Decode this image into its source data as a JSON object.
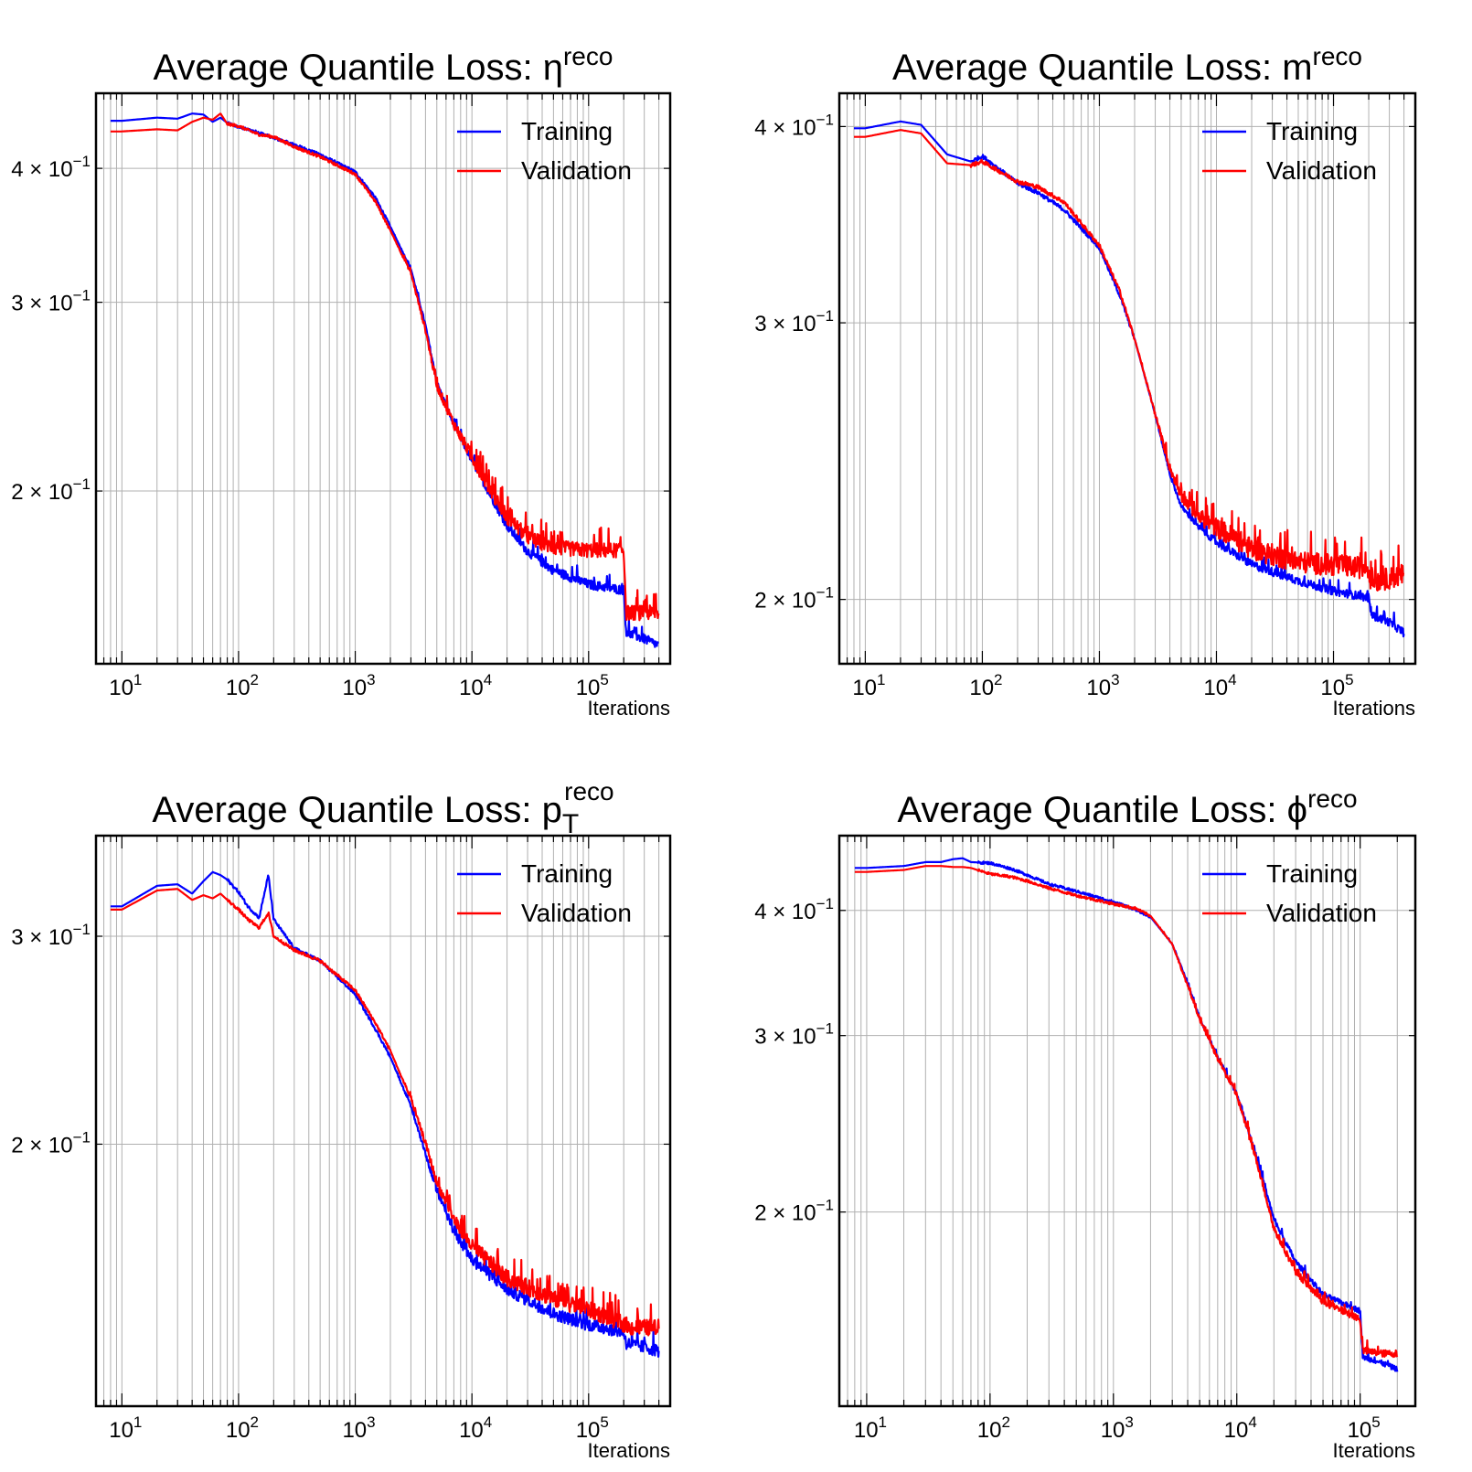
{
  "figure": {
    "background": "#ffffff"
  },
  "chart_data": [
    {
      "type": "line",
      "title": {
        "main": "Average Quantile Loss: ",
        "symbol": "η",
        "sup": "reco",
        "sub": ""
      },
      "xlabel": "Iterations",
      "ylabel": "",
      "xscale": "log",
      "yscale": "log",
      "xlim": [
        6,
        500000
      ],
      "ylim": [
        0.138,
        0.47
      ],
      "xticks": [
        {
          "base": "10",
          "exp": "1",
          "value": 10
        },
        {
          "base": "10",
          "exp": "2",
          "value": 100
        },
        {
          "base": "10",
          "exp": "3",
          "value": 1000
        },
        {
          "base": "10",
          "exp": "4",
          "value": 10000
        },
        {
          "base": "10",
          "exp": "5",
          "value": 100000
        }
      ],
      "yticks": [
        {
          "coef": "4 × ",
          "base": "10",
          "exp": "−1",
          "value": 0.4
        },
        {
          "coef": "3 × ",
          "base": "10",
          "exp": "−1",
          "value": 0.3
        },
        {
          "coef": "2 × ",
          "base": "10",
          "exp": "−1",
          "value": 0.2
        }
      ],
      "grid": true,
      "legend_position": "top-right",
      "series": [
        {
          "name": "Training",
          "color": "#0000ff",
          "x": [
            8,
            10,
            20,
            30,
            40,
            50,
            60,
            70,
            80,
            100,
            150,
            200,
            300,
            500,
            1000,
            1500,
            2000,
            3000,
            4000,
            5000,
            7000,
            10000,
            15000,
            20000,
            30000,
            50000,
            100000,
            200000,
            210000,
            300000,
            400000
          ],
          "y": [
            0.443,
            0.443,
            0.446,
            0.445,
            0.45,
            0.449,
            0.442,
            0.446,
            0.441,
            0.437,
            0.432,
            0.427,
            0.421,
            0.412,
            0.397,
            0.375,
            0.353,
            0.322,
            0.285,
            0.252,
            0.23,
            0.213,
            0.196,
            0.185,
            0.175,
            0.168,
            0.163,
            0.161,
            0.147,
            0.145,
            0.143
          ],
          "noise": 0.01
        },
        {
          "name": "Validation",
          "color": "#ff0000",
          "x": [
            8,
            10,
            20,
            30,
            40,
            50,
            60,
            70,
            80,
            100,
            150,
            200,
            300,
            500,
            1000,
            1500,
            2000,
            3000,
            4000,
            5000,
            7000,
            10000,
            15000,
            20000,
            30000,
            50000,
            100000,
            200000,
            210000,
            300000,
            400000
          ],
          "y": [
            0.433,
            0.433,
            0.435,
            0.434,
            0.442,
            0.446,
            0.444,
            0.45,
            0.44,
            0.438,
            0.43,
            0.428,
            0.419,
            0.41,
            0.395,
            0.372,
            0.35,
            0.319,
            0.282,
            0.25,
            0.23,
            0.214,
            0.198,
            0.188,
            0.18,
            0.176,
            0.175,
            0.175,
            0.153,
            0.153,
            0.153
          ],
          "noise": 0.016
        }
      ]
    },
    {
      "type": "line",
      "title": {
        "main": "Average Quantile Loss: ",
        "symbol": "m",
        "sup": "reco",
        "sub": ""
      },
      "xlabel": "Iterations",
      "ylabel": "",
      "xscale": "log",
      "yscale": "log",
      "xlim": [
        6,
        500000
      ],
      "ylim": [
        0.182,
        0.42
      ],
      "xticks": [
        {
          "base": "10",
          "exp": "1",
          "value": 10
        },
        {
          "base": "10",
          "exp": "2",
          "value": 100
        },
        {
          "base": "10",
          "exp": "3",
          "value": 1000
        },
        {
          "base": "10",
          "exp": "4",
          "value": 10000
        },
        {
          "base": "10",
          "exp": "5",
          "value": 100000
        }
      ],
      "yticks": [
        {
          "coef": "4 × ",
          "base": "10",
          "exp": "−1",
          "value": 0.4
        },
        {
          "coef": "3 × ",
          "base": "10",
          "exp": "−1",
          "value": 0.3
        },
        {
          "coef": "2 × ",
          "base": "10",
          "exp": "−1",
          "value": 0.2
        }
      ],
      "grid": true,
      "legend_position": "top-right",
      "series": [
        {
          "name": "Training",
          "color": "#0000ff",
          "x": [
            8,
            10,
            20,
            30,
            50,
            80,
            100,
            200,
            300,
            500,
            1000,
            1500,
            2000,
            3000,
            4000,
            5000,
            7000,
            10000,
            20000,
            50000,
            100000,
            200000,
            210000,
            300000,
            400000
          ],
          "y": [
            0.399,
            0.399,
            0.403,
            0.401,
            0.384,
            0.38,
            0.383,
            0.368,
            0.363,
            0.354,
            0.335,
            0.312,
            0.293,
            0.262,
            0.24,
            0.229,
            0.222,
            0.217,
            0.21,
            0.205,
            0.202,
            0.2,
            0.195,
            0.193,
            0.19
          ],
          "noise": 0.006
        },
        {
          "name": "Validation",
          "color": "#ff0000",
          "x": [
            8,
            10,
            20,
            30,
            50,
            80,
            100,
            200,
            300,
            500,
            1000,
            1500,
            2000,
            3000,
            4000,
            5000,
            7000,
            10000,
            20000,
            50000,
            100000,
            200000,
            210000,
            300000,
            400000
          ],
          "y": [
            0.394,
            0.394,
            0.398,
            0.396,
            0.379,
            0.378,
            0.38,
            0.369,
            0.366,
            0.358,
            0.336,
            0.314,
            0.293,
            0.262,
            0.242,
            0.232,
            0.225,
            0.221,
            0.214,
            0.21,
            0.209,
            0.208,
            0.204,
            0.205,
            0.206
          ],
          "noise": 0.016
        }
      ]
    },
    {
      "type": "line",
      "title": {
        "main": "Average Quantile Loss: ",
        "symbol": "p",
        "sup": "reco",
        "sub": "T"
      },
      "xlabel": "Iterations",
      "ylabel": "",
      "xscale": "log",
      "yscale": "log",
      "xlim": [
        6,
        500000
      ],
      "ylim": [
        0.12,
        0.365
      ],
      "xticks": [
        {
          "base": "10",
          "exp": "1",
          "value": 10
        },
        {
          "base": "10",
          "exp": "2",
          "value": 100
        },
        {
          "base": "10",
          "exp": "3",
          "value": 1000
        },
        {
          "base": "10",
          "exp": "4",
          "value": 10000
        },
        {
          "base": "10",
          "exp": "5",
          "value": 100000
        }
      ],
      "yticks": [
        {
          "coef": "3 × ",
          "base": "10",
          "exp": "−1",
          "value": 0.3
        },
        {
          "coef": "2 × ",
          "base": "10",
          "exp": "−1",
          "value": 0.2
        }
      ],
      "grid": true,
      "legend_position": "top-right",
      "series": [
        {
          "name": "Training",
          "color": "#0000ff",
          "x": [
            8,
            10,
            20,
            30,
            40,
            50,
            60,
            70,
            80,
            100,
            120,
            150,
            180,
            200,
            300,
            500,
            1000,
            1500,
            2000,
            3000,
            4000,
            5000,
            7000,
            10000,
            20000,
            50000,
            100000,
            200000,
            210000,
            300000,
            400000
          ],
          "y": [
            0.318,
            0.318,
            0.331,
            0.332,
            0.326,
            0.334,
            0.34,
            0.338,
            0.335,
            0.327,
            0.318,
            0.311,
            0.338,
            0.31,
            0.293,
            0.286,
            0.268,
            0.25,
            0.237,
            0.215,
            0.196,
            0.182,
            0.168,
            0.159,
            0.15,
            0.143,
            0.14,
            0.138,
            0.135,
            0.134,
            0.133
          ],
          "noise": 0.012
        },
        {
          "name": "Validation",
          "color": "#ff0000",
          "x": [
            8,
            10,
            20,
            30,
            40,
            50,
            60,
            70,
            80,
            100,
            120,
            150,
            180,
            200,
            300,
            500,
            1000,
            1500,
            2000,
            3000,
            4000,
            5000,
            7000,
            10000,
            20000,
            50000,
            100000,
            200000,
            210000,
            300000,
            400000
          ],
          "y": [
            0.316,
            0.316,
            0.328,
            0.329,
            0.322,
            0.325,
            0.323,
            0.326,
            0.322,
            0.316,
            0.31,
            0.305,
            0.314,
            0.3,
            0.292,
            0.286,
            0.27,
            0.253,
            0.24,
            0.218,
            0.2,
            0.185,
            0.172,
            0.163,
            0.153,
            0.147,
            0.144,
            0.14,
            0.139,
            0.139,
            0.139
          ],
          "noise": 0.016
        }
      ]
    },
    {
      "type": "line",
      "title": {
        "main": "Average Quantile Loss: ",
        "symbol": "ϕ",
        "sup": "reco",
        "sub": ""
      },
      "xlabel": "Iterations",
      "ylabel": "",
      "xscale": "log",
      "yscale": "log",
      "xlim": [
        6,
        280000
      ],
      "ylim": [
        0.128,
        0.475
      ],
      "xticks": [
        {
          "base": "10",
          "exp": "1",
          "value": 10
        },
        {
          "base": "10",
          "exp": "2",
          "value": 100
        },
        {
          "base": "10",
          "exp": "3",
          "value": 1000
        },
        {
          "base": "10",
          "exp": "4",
          "value": 10000
        },
        {
          "base": "10",
          "exp": "5",
          "value": 100000
        }
      ],
      "yticks": [
        {
          "coef": "4 × ",
          "base": "10",
          "exp": "−1",
          "value": 0.4
        },
        {
          "coef": "3 × ",
          "base": "10",
          "exp": "−1",
          "value": 0.3
        },
        {
          "coef": "2 × ",
          "base": "10",
          "exp": "−1",
          "value": 0.2
        }
      ],
      "grid": true,
      "legend_position": "top-right",
      "series": [
        {
          "name": "Training",
          "color": "#0000ff",
          "x": [
            8,
            10,
            20,
            30,
            40,
            50,
            60,
            70,
            100,
            150,
            200,
            300,
            500,
            1000,
            1500,
            2000,
            3000,
            4000,
            5000,
            7000,
            10000,
            15000,
            20000,
            30000,
            50000,
            100000,
            105000,
            150000,
            200000
          ],
          "y": [
            0.441,
            0.441,
            0.443,
            0.447,
            0.447,
            0.45,
            0.451,
            0.447,
            0.446,
            0.44,
            0.434,
            0.425,
            0.418,
            0.408,
            0.401,
            0.394,
            0.37,
            0.338,
            0.312,
            0.285,
            0.262,
            0.223,
            0.196,
            0.178,
            0.165,
            0.159,
            0.143,
            0.141,
            0.139
          ],
          "noise": 0.006
        },
        {
          "name": "Validation",
          "color": "#ff0000",
          "x": [
            8,
            10,
            20,
            30,
            40,
            50,
            60,
            70,
            100,
            150,
            200,
            300,
            500,
            1000,
            1500,
            2000,
            3000,
            4000,
            5000,
            7000,
            10000,
            15000,
            20000,
            30000,
            50000,
            100000,
            105000,
            150000,
            200000
          ],
          "y": [
            0.437,
            0.437,
            0.439,
            0.443,
            0.443,
            0.442,
            0.442,
            0.441,
            0.435,
            0.432,
            0.428,
            0.421,
            0.414,
            0.406,
            0.402,
            0.395,
            0.37,
            0.336,
            0.311,
            0.284,
            0.261,
            0.221,
            0.192,
            0.174,
            0.162,
            0.156,
            0.145,
            0.144,
            0.144
          ],
          "noise": 0.008
        }
      ]
    }
  ]
}
